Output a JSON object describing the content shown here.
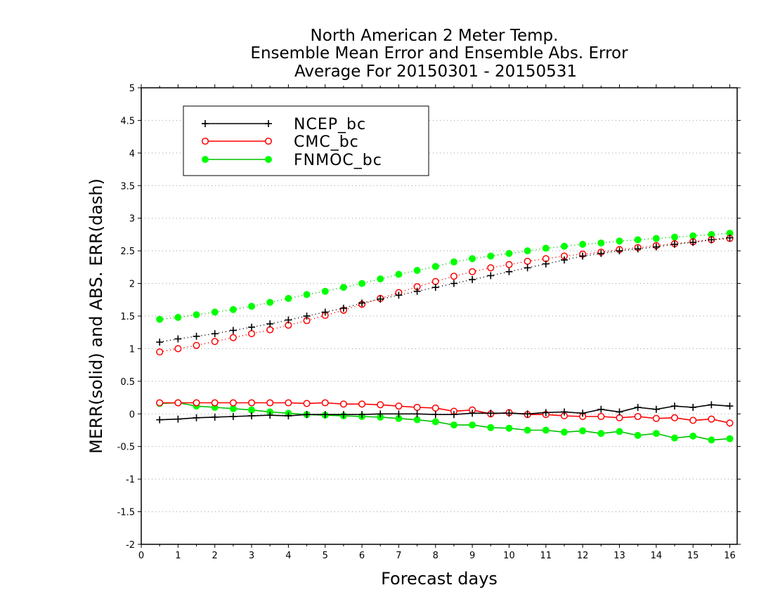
{
  "chart_data": {
    "type": "line",
    "title": [
      "North American 2 Meter Temp.",
      "Ensemble Mean Error and Ensemble Abs. Error",
      "Average For 20150301 - 20150531"
    ],
    "xlabel": "Forecast days",
    "ylabel": "MERR(solid) and ABS. ERR(dash)",
    "xlim": [
      0,
      16.2
    ],
    "ylim": [
      -2,
      5
    ],
    "xticks": [
      "0",
      "1",
      "2",
      "3",
      "4",
      "5",
      "6",
      "7",
      "8",
      "9",
      "10",
      "11",
      "12",
      "13",
      "14",
      "15",
      "16"
    ],
    "yticks": [
      "5",
      "4.5",
      "4",
      "3.5",
      "3",
      "2.5",
      "2",
      "1.5",
      "1",
      "0.5",
      "0",
      "-0.5",
      "-1",
      "-1.5",
      "-2"
    ],
    "grid": "horizontal dotted",
    "legend_position": "top-left",
    "x": [
      0.5,
      1,
      1.5,
      2,
      2.5,
      3,
      3.5,
      4,
      4.5,
      5,
      5.5,
      6,
      6.5,
      7,
      7.5,
      8,
      8.5,
      9,
      9.5,
      10,
      10.5,
      11,
      11.5,
      12,
      12.5,
      13,
      13.5,
      14,
      14.5,
      15,
      15.5,
      16
    ],
    "series": [
      {
        "name": "NCEP_bc",
        "color": "#000000",
        "marker": "plus",
        "merr": [
          -0.09,
          -0.08,
          -0.06,
          -0.05,
          -0.04,
          -0.03,
          -0.02,
          -0.03,
          -0.01,
          -0.01,
          -0.01,
          -0.01,
          0.0,
          0.0,
          0.0,
          -0.01,
          -0.01,
          0.01,
          0.01,
          0.01,
          0.0,
          0.02,
          0.03,
          0.01,
          0.07,
          0.03,
          0.1,
          0.07,
          0.12,
          0.1,
          0.14,
          0.12
        ],
        "abs_err": [
          1.1,
          1.15,
          1.19,
          1.23,
          1.28,
          1.33,
          1.38,
          1.44,
          1.5,
          1.56,
          1.62,
          1.7,
          1.76,
          1.82,
          1.88,
          1.94,
          2.0,
          2.06,
          2.12,
          2.18,
          2.24,
          2.3,
          2.36,
          2.42,
          2.46,
          2.5,
          2.53,
          2.56,
          2.6,
          2.63,
          2.67,
          2.7
        ]
      },
      {
        "name": "CMC_bc",
        "color": "#ff0000",
        "marker": "open-circle",
        "merr": [
          0.17,
          0.17,
          0.17,
          0.17,
          0.17,
          0.17,
          0.17,
          0.17,
          0.16,
          0.17,
          0.15,
          0.15,
          0.14,
          0.12,
          0.1,
          0.09,
          0.04,
          0.06,
          0.0,
          0.02,
          -0.01,
          -0.01,
          -0.03,
          -0.04,
          -0.04,
          -0.06,
          -0.04,
          -0.07,
          -0.06,
          -0.1,
          -0.08,
          -0.14
        ]
      },
      {
        "name": "FNMOC_bc",
        "color": "#00ff00",
        "marker": "filled-circle",
        "merr": [
          0.16,
          0.17,
          0.12,
          0.1,
          0.08,
          0.06,
          0.03,
          0.01,
          -0.01,
          -0.02,
          -0.03,
          -0.04,
          -0.05,
          -0.07,
          -0.09,
          -0.12,
          -0.17,
          -0.17,
          -0.21,
          -0.22,
          -0.25,
          -0.25,
          -0.28,
          -0.26,
          -0.3,
          -0.27,
          -0.33,
          -0.3,
          -0.37,
          -0.34,
          -0.4,
          -0.38
        ],
        "abs_err": [
          1.45,
          1.48,
          1.52,
          1.56,
          1.6,
          1.65,
          1.71,
          1.77,
          1.83,
          1.88,
          1.94,
          2.0,
          2.07,
          2.14,
          2.2,
          2.26,
          2.33,
          2.38,
          2.42,
          2.46,
          2.5,
          2.54,
          2.57,
          2.6,
          2.62,
          2.65,
          2.67,
          2.69,
          2.71,
          2.73,
          2.75,
          2.77
        ]
      }
    ],
    "cmc_abs_err": [
      0.95,
      1.0,
      1.05,
      1.11,
      1.17,
      1.23,
      1.29,
      1.36,
      1.43,
      1.51,
      1.59,
      1.68,
      1.77,
      1.86,
      1.95,
      2.03,
      2.11,
      2.18,
      2.24,
      2.29,
      2.34,
      2.38,
      2.42,
      2.45,
      2.48,
      2.52,
      2.55,
      2.58,
      2.61,
      2.64,
      2.67,
      2.69
    ]
  }
}
